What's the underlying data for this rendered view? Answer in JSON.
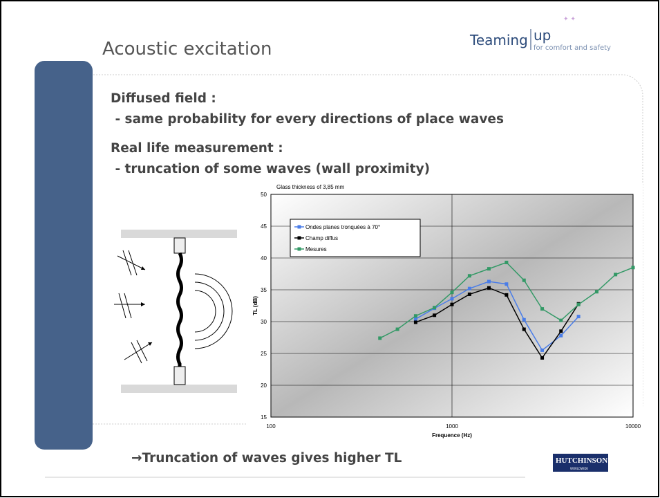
{
  "header": {
    "title": "Acoustic excitation",
    "logo_main": "Teaming",
    "logo_up": "up",
    "logo_tagline": "for comfort and safety"
  },
  "body": {
    "lines": [
      "Diffused field :",
      " - same probability for every directions of place waves",
      "Real life measurement :",
      " - truncation of some waves (wall proximity)"
    ],
    "conclusion": "→Truncation of waves gives higher TL"
  },
  "footer": {
    "brand": "HUTCHINSON",
    "brand_sub": "WORLDWIDE"
  },
  "chart_data": {
    "type": "line",
    "title": "Glass thickness of 3,85 mm",
    "x_label": "Frequence (Hz)",
    "y_label": "TL (dB)",
    "x": [
      400,
      500,
      630,
      800,
      1000,
      1250,
      1600,
      2000,
      2500,
      3150,
      4000,
      5000,
      6300,
      8000,
      10000
    ],
    "series": [
      {
        "name": "Ondes planes tronquées à 70°",
        "color": "#4a7de8",
        "values": [
          null,
          null,
          30.4,
          32.1,
          33.6,
          35.2,
          36.3,
          35.9,
          30.3,
          25.5,
          27.8,
          30.8,
          null,
          null,
          null
        ]
      },
      {
        "name": "Champ diffus",
        "color": "#000000",
        "values": [
          null,
          null,
          29.9,
          31.0,
          32.7,
          34.3,
          35.3,
          34.2,
          28.8,
          24.3,
          28.5,
          32.8,
          null,
          null,
          null
        ]
      },
      {
        "name": "Mesures",
        "color": "#339966",
        "values": [
          27.4,
          28.8,
          30.9,
          32.2,
          34.6,
          37.2,
          38.3,
          39.3,
          36.5,
          32.0,
          30.2,
          32.7,
          34.7,
          37.4,
          38.5
        ]
      }
    ],
    "xlim": [
      100,
      10000
    ],
    "xticks": [
      100,
      1000,
      10000
    ],
    "x_log": true,
    "ylim": [
      15,
      50
    ],
    "yticks": [
      15,
      20,
      25,
      30,
      35,
      40,
      45,
      50
    ],
    "grid": true,
    "legend": "upper left"
  }
}
